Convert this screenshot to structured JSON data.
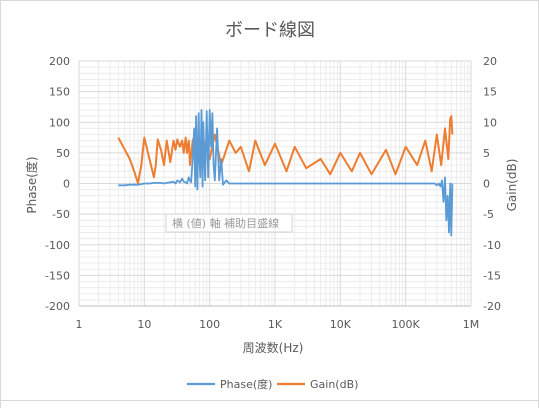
{
  "chart_data": {
    "type": "line",
    "title": "ボード線図",
    "xlabel": "周波数(Hz)",
    "ylabel_left": "Phase(度)",
    "ylabel_right": "Gain(dB)",
    "x_scale": "log",
    "xlim": [
      1,
      1000000
    ],
    "ylim_left": [
      -200,
      200
    ],
    "ylim_right": [
      -20,
      20
    ],
    "x_ticks": [
      {
        "value": 1,
        "label": "1"
      },
      {
        "value": 10,
        "label": "10"
      },
      {
        "value": 100,
        "label": "100"
      },
      {
        "value": 1000,
        "label": "1K"
      },
      {
        "value": 10000,
        "label": "10K"
      },
      {
        "value": 100000,
        "label": "100K"
      },
      {
        "value": 1000000,
        "label": "1M"
      }
    ],
    "y_left_ticks": [
      "200",
      "150",
      "100",
      "50",
      "0",
      "-50",
      "-100",
      "-150",
      "-200"
    ],
    "y_right_ticks": [
      "20",
      "15",
      "10",
      "5",
      "0",
      "-5",
      "-10",
      "-15",
      "-20"
    ],
    "grid": "major and minor, log x",
    "legend_position": "bottom",
    "gridline_label": "横 (値) 軸 補助目盛線",
    "series": [
      {
        "name": "Phase(度)",
        "axis": "left",
        "color": "#5b9bd5",
        "x": [
          4,
          5,
          6,
          7,
          8,
          9,
          10,
          12,
          14,
          16,
          18,
          20,
          22,
          25,
          28,
          30,
          32,
          35,
          38,
          40,
          43,
          45,
          48,
          50,
          52,
          55,
          58,
          60,
          62,
          65,
          68,
          70,
          72,
          75,
          78,
          80,
          85,
          90,
          95,
          100,
          105,
          110,
          115,
          120,
          130,
          140,
          150,
          160,
          180,
          200,
          220,
          250,
          300,
          400,
          500,
          700,
          1000,
          2000,
          5000,
          10000,
          20000,
          50000,
          100000,
          150000,
          200000,
          250000,
          280000,
          300000,
          320000,
          340000,
          360000,
          380000,
          400000,
          420000,
          440000,
          460000,
          480000,
          500000,
          520000
        ],
        "y": [
          -3,
          -3,
          -2,
          -2,
          -2,
          -1,
          0,
          0,
          1,
          1,
          1,
          0,
          1,
          2,
          3,
          0,
          5,
          2,
          8,
          3,
          2,
          0,
          10,
          5,
          2,
          40,
          90,
          -5,
          110,
          -10,
          115,
          40,
          10,
          120,
          -5,
          100,
          5,
          118,
          10,
          120,
          60,
          115,
          30,
          5,
          90,
          5,
          40,
          -2,
          5,
          0,
          0,
          0,
          0,
          0,
          0,
          0,
          0,
          0,
          0,
          0,
          0,
          0,
          0,
          0,
          0,
          0,
          0,
          -3,
          0,
          -5,
          5,
          -30,
          10,
          -60,
          -20,
          -80,
          0,
          -85,
          0
        ]
      },
      {
        "name": "Gain(dB)",
        "axis": "right",
        "color": "#ed7d31",
        "x": [
          4,
          6,
          7,
          8,
          9,
          10,
          12,
          14,
          15,
          16,
          18,
          20,
          22,
          25,
          28,
          30,
          32,
          35,
          38,
          40,
          43,
          45,
          48,
          50,
          55,
          60,
          70,
          80,
          90,
          100,
          120,
          150,
          200,
          250,
          300,
          400,
          500,
          700,
          1000,
          1500,
          2000,
          3000,
          5000,
          7000,
          10000,
          15000,
          20000,
          30000,
          50000,
          70000,
          100000,
          150000,
          200000,
          250000,
          300000,
          350000,
          400000,
          450000,
          480000,
          500000,
          520000
        ],
        "y": [
          7.5,
          4,
          2,
          0,
          3,
          7.5,
          4,
          1,
          3,
          7.2,
          5.5,
          3,
          7,
          3.5,
          7,
          5.5,
          7.2,
          6,
          7,
          5,
          7.5,
          5,
          7,
          3,
          7,
          8,
          5,
          7,
          6,
          4,
          8,
          3,
          7,
          5,
          6,
          2,
          7,
          3,
          6.5,
          2,
          6,
          2.5,
          4,
          1.5,
          5,
          2,
          5,
          1.5,
          5.5,
          1.5,
          6,
          3,
          7,
          2,
          8,
          3,
          9,
          4,
          10.5,
          11,
          8
        ]
      }
    ]
  }
}
